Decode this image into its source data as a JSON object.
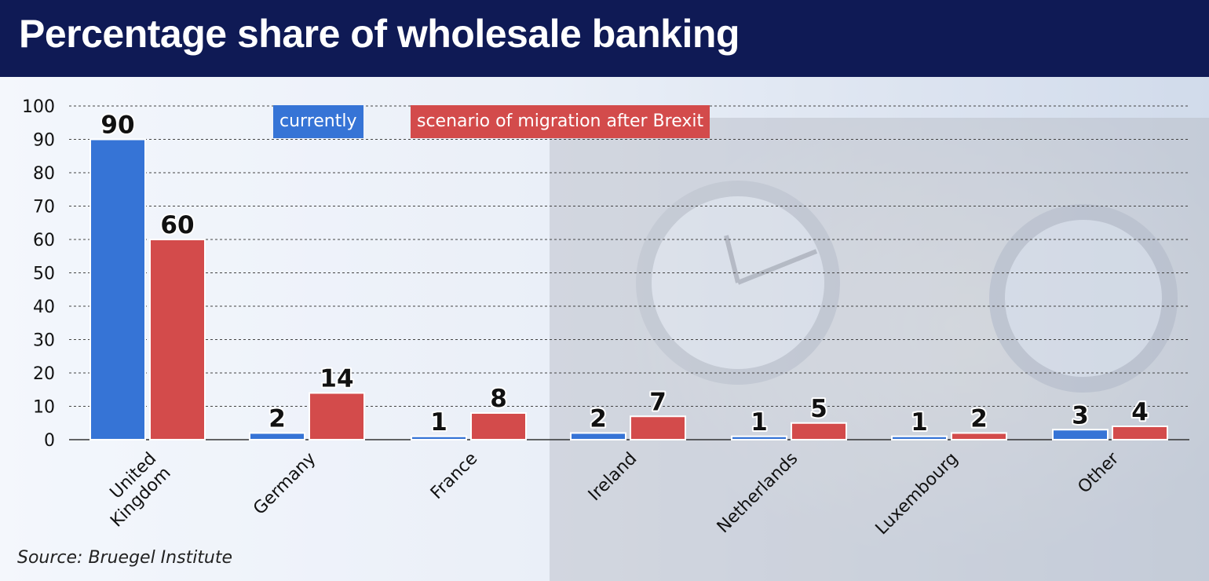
{
  "title": "Percentage share of wholesale banking",
  "source": "Source: Bruegel Institute",
  "colors": {
    "title_bar": "#0f1a55",
    "currently": "#3674d6",
    "scenario": "#d34b4b"
  },
  "chart_data": {
    "type": "bar",
    "title": "Percentage share of wholesale banking",
    "xlabel": "",
    "ylabel": "",
    "ylim": [
      0,
      100
    ],
    "yticks": [
      0,
      10,
      20,
      30,
      40,
      50,
      60,
      70,
      80,
      90,
      100
    ],
    "grid": true,
    "legend_position": "top-left",
    "categories": [
      "United Kingdom",
      "Germany",
      "France",
      "Ireland",
      "Netherlands",
      "Luxembourg",
      "Other"
    ],
    "category_lines": [
      [
        "United",
        "Kingdom"
      ],
      [
        "Germany"
      ],
      [
        "France"
      ],
      [
        "Ireland"
      ],
      [
        "Netherlands"
      ],
      [
        "Luxembourg"
      ],
      [
        "Other"
      ]
    ],
    "series": [
      {
        "name": "currently",
        "color": "#3674d6",
        "values": [
          90,
          2,
          1,
          2,
          1,
          1,
          3
        ]
      },
      {
        "name": "scenario of migration after Brexit",
        "color": "#d34b4b",
        "values": [
          60,
          14,
          8,
          7,
          5,
          2,
          4
        ]
      }
    ]
  }
}
